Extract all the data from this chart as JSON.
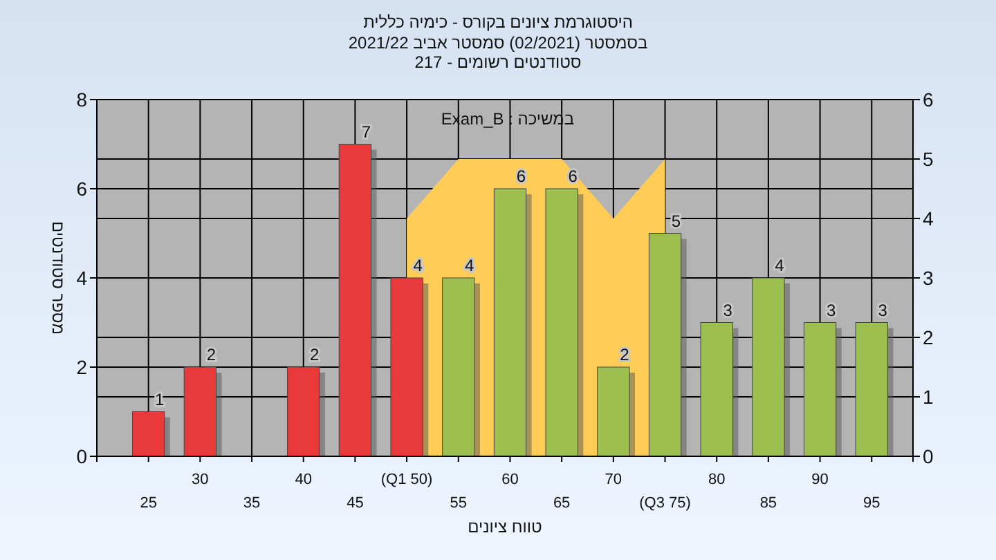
{
  "chart_data": {
    "type": "bar",
    "title": "היסטוגרמת ציונים בקורס - כימיה כללית",
    "subtitle": [
      "בסמסטר (02/2021) סמסטר אביב 2021/22",
      "סטודנטים רשומים - 217"
    ],
    "xlabel": "טווח ציונים",
    "ylabel": "מספר סטודנטים",
    "annotations": [
      "במשיכה : Exam_B"
    ],
    "categories": [
      "25",
      "30",
      "35",
      "40",
      "45",
      "(Q1 50)",
      "55",
      "60",
      "65",
      "70",
      "(Q3 75)",
      "80",
      "85",
      "90",
      "95"
    ],
    "series": [
      {
        "type": "area",
        "axis": "y2",
        "color": "#ffcc55",
        "values": [
          null,
          null,
          null,
          null,
          null,
          4,
          5,
          5,
          5,
          4,
          5,
          null,
          null,
          null,
          null
        ]
      },
      {
        "colors": [
          "#e83a3a",
          "#e83a3a",
          null,
          "#e83a3a",
          "#e83a3a",
          "#e83a3a",
          "#9cbf4f",
          "#9cbf4f",
          "#9cbf4f",
          "#9cbf4f",
          "#9cbf4f",
          "#9cbf4f",
          "#9cbf4f",
          "#9cbf4f",
          "#9cbf4f"
        ],
        "values": [
          1,
          2,
          null,
          2,
          7,
          4,
          4,
          6,
          6,
          2,
          5,
          3,
          4,
          3,
          3
        ],
        "value_labels": [
          "1",
          "2",
          null,
          "2",
          "7",
          "4",
          "4",
          "6",
          "6",
          "2",
          "5",
          "3",
          "4",
          "3",
          "3"
        ]
      }
    ],
    "ylim": [
      0,
      8
    ],
    "yticks": [
      0,
      2,
      4,
      6,
      8
    ],
    "y2lim": [
      0,
      6
    ],
    "y2ticks": [
      0,
      1,
      2,
      3,
      4,
      5,
      6
    ],
    "grid": true
  }
}
